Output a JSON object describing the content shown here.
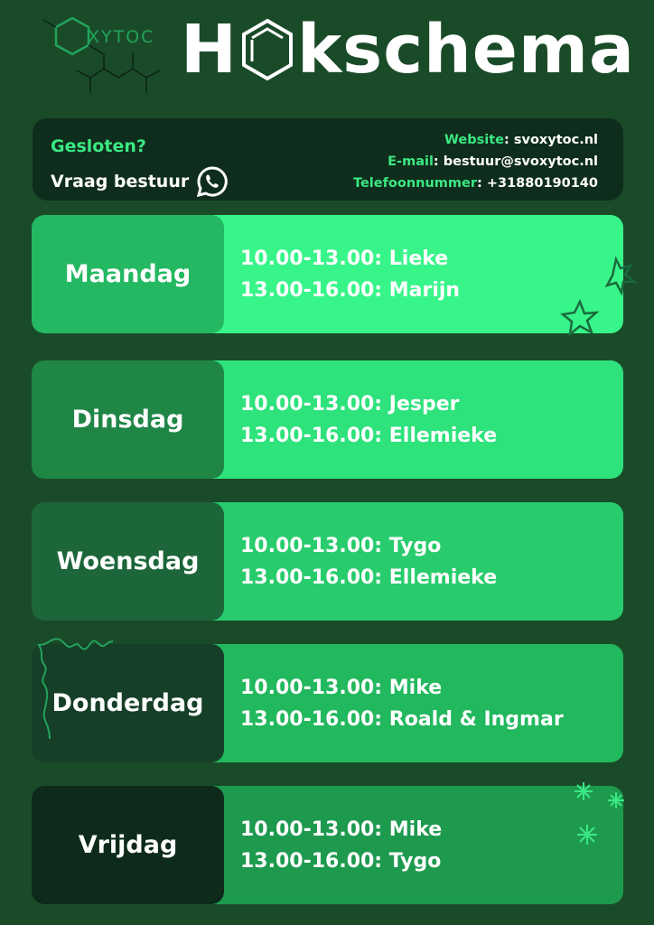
{
  "logo": {
    "text": "XYTOC"
  },
  "title": {
    "before": "H",
    "after": "kschema"
  },
  "info": {
    "closed": "Gesloten?",
    "ask": "Vraag bestuur",
    "contacts": [
      {
        "label": "Website",
        "value": "svoxytoc.nl"
      },
      {
        "label": "E-mail",
        "value": "bestuur@svoxytoc.nl"
      },
      {
        "label": "Telefoonnummer",
        "value": "+31880190140"
      }
    ]
  },
  "days": [
    {
      "day": "Maandag",
      "slots": [
        "10.00-13.00: Lieke",
        "13.00-16.00: Marijn"
      ],
      "day_color": "#24b862",
      "slot_color": "#38f58a"
    },
    {
      "day": "Dinsdag",
      "slots": [
        "10.00-13.00: Jesper",
        "13.00-16.00: Ellemieke"
      ],
      "day_color": "#1f8646",
      "slot_color": "#2ee27c"
    },
    {
      "day": "Woensdag",
      "slots": [
        "10.00-13.00: Tygo",
        "13.00-16.00: Ellemieke"
      ],
      "day_color": "#1c663a",
      "slot_color": "#28cc6c"
    },
    {
      "day": "Donderdag",
      "slots": [
        "10.00-13.00: Mike",
        "13.00-16.00: Roald & Ingmar"
      ],
      "day_color": "#163f27",
      "slot_color": "#22b85e"
    },
    {
      "day": "Vrijdag",
      "slots": [
        "10.00-13.00: Mike",
        "13.00-16.00: Tygo"
      ],
      "day_color": "#0e2a1b",
      "slot_color": "#1e9a4f"
    }
  ]
}
